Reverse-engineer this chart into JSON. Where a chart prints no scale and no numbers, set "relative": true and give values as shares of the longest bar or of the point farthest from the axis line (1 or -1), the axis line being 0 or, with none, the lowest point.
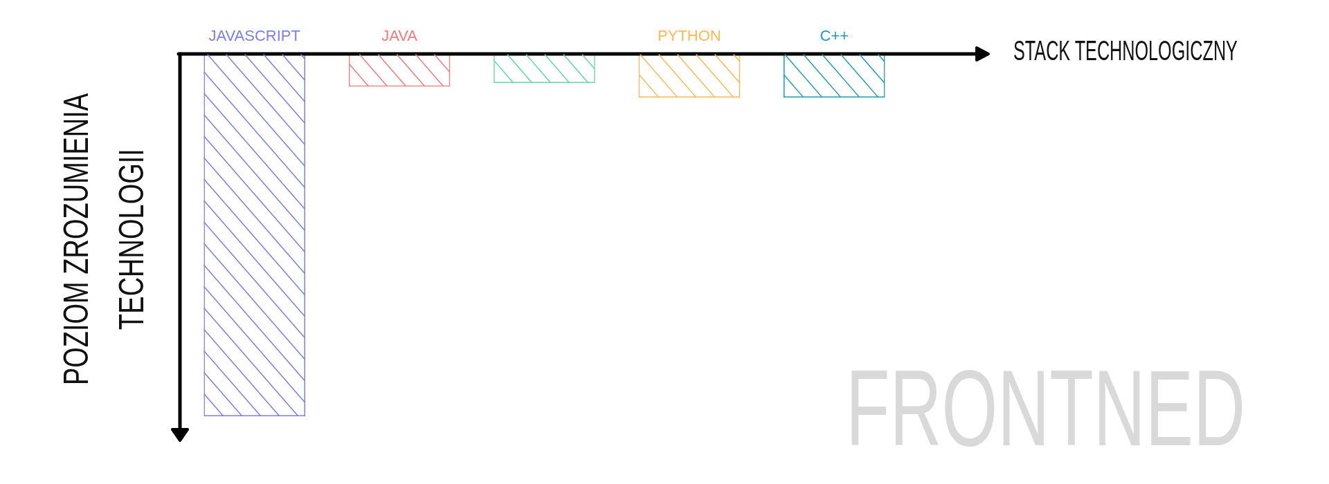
{
  "chart_data": {
    "type": "bar",
    "categories": [
      "JAVASCRIPT",
      "JAVA",
      null,
      "PYTHON",
      "C++"
    ],
    "values": [
      -1,
      -0.09,
      -0.08,
      -0.12,
      -0.12
    ],
    "colors": [
      "#7b7ff0",
      "#f57b7b",
      "#5cdca5",
      "#ffb950",
      "#1a9db5"
    ],
    "relative": true,
    "xlabel": "STACK TECHNOLOGICZNY",
    "ylabel": "POZIOM ZROZUMIENIA TECHNOLOGII",
    "annotations": [
      "FRONTNED"
    ]
  }
}
